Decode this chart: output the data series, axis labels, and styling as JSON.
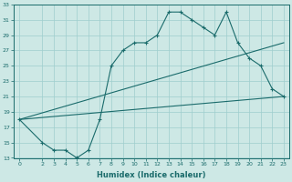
{
  "xlabel": "Humidex (Indice chaleur)",
  "background_color": "#cde8e5",
  "grid_color": "#9fcece",
  "line_color": "#1a6b6b",
  "xlim": [
    -0.5,
    23.5
  ],
  "ylim": [
    13,
    33
  ],
  "yticks": [
    13,
    15,
    17,
    19,
    21,
    23,
    25,
    27,
    29,
    31,
    33
  ],
  "xticks": [
    0,
    2,
    3,
    4,
    5,
    6,
    7,
    8,
    9,
    10,
    11,
    12,
    13,
    14,
    15,
    16,
    17,
    18,
    19,
    20,
    21,
    22,
    23
  ],
  "series1_x": [
    0,
    2,
    3,
    4,
    5,
    6,
    7,
    8,
    9,
    10,
    11,
    12,
    13,
    14,
    15,
    16,
    17,
    18,
    19,
    20,
    21,
    22,
    23
  ],
  "series1_y": [
    18,
    15,
    14,
    14,
    13,
    14,
    18,
    25,
    27,
    28,
    28,
    29,
    32,
    32,
    31,
    30,
    29,
    32,
    28,
    26,
    25,
    22,
    21
  ],
  "series2_x": [
    0,
    23
  ],
  "series2_y": [
    18,
    28
  ],
  "series3_x": [
    0,
    23
  ],
  "series3_y": [
    18,
    21
  ]
}
